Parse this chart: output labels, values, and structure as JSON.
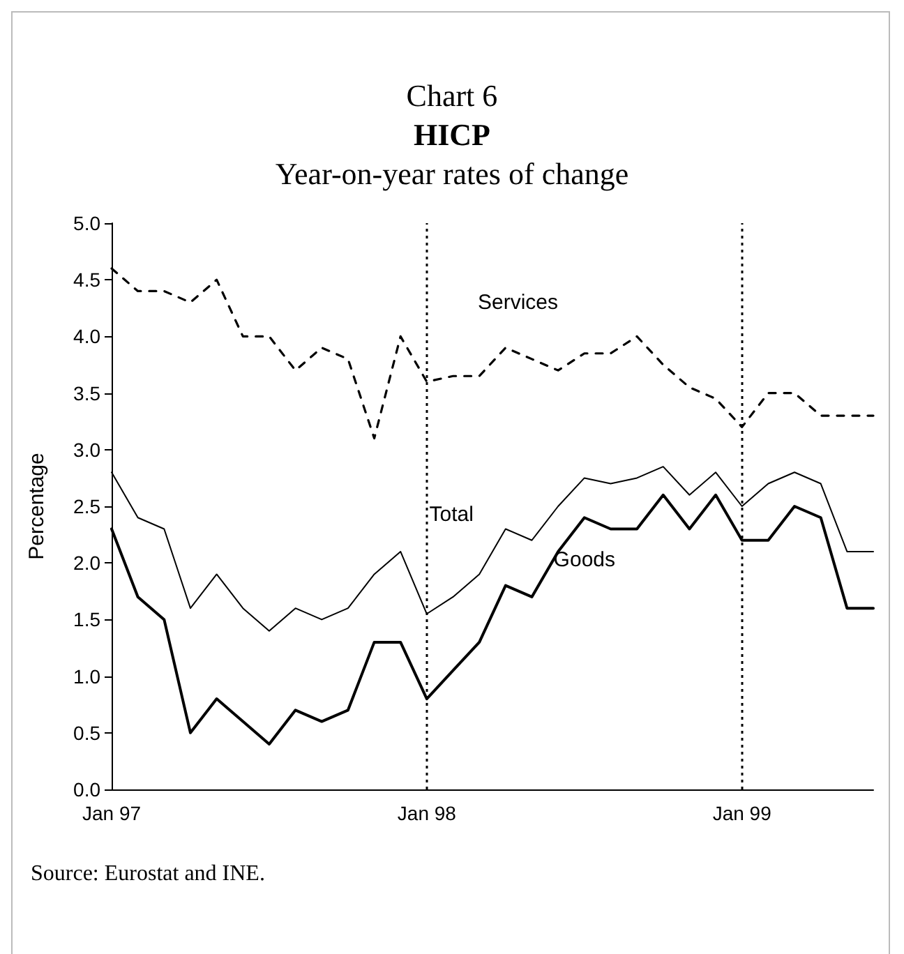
{
  "chart_data": {
    "type": "line",
    "title": "HICP",
    "subtitle": "Year-on-year rates of change",
    "ylabel": "Percentage",
    "annotations": [
      "Chart 6",
      "Source: Eurostat and INE."
    ],
    "categories": [
      "Jan 97",
      null,
      null,
      null,
      null,
      null,
      null,
      null,
      null,
      null,
      null,
      null,
      "Jan 98",
      null,
      null,
      null,
      null,
      null,
      null,
      null,
      null,
      null,
      null,
      null,
      "Jan 99",
      null,
      null,
      null,
      null,
      null
    ],
    "series": [
      {
        "name": "Services",
        "color": "#000000",
        "line_style": "dashed",
        "values": [
          4.6,
          4.4,
          4.4,
          4.3,
          4.5,
          4.0,
          4.0,
          3.7,
          3.9,
          3.8,
          3.1,
          4.0,
          3.6,
          3.65,
          3.65,
          3.9,
          3.8,
          3.7,
          3.85,
          3.85,
          4.0,
          3.75,
          3.55,
          3.45,
          3.2,
          3.5,
          3.5,
          3.3,
          3.3,
          3.3
        ]
      },
      {
        "name": "Total",
        "color": "#000000",
        "line_style": "solid",
        "values": [
          2.8,
          2.4,
          2.3,
          1.6,
          1.9,
          1.6,
          1.4,
          1.6,
          1.5,
          1.6,
          1.9,
          2.1,
          1.55,
          1.7,
          1.9,
          2.3,
          2.2,
          2.5,
          2.75,
          2.7,
          2.75,
          2.85,
          2.6,
          2.8,
          2.5,
          2.7,
          2.8,
          2.7,
          2.1,
          2.1
        ]
      },
      {
        "name": "Goods",
        "color": "#000000",
        "line_style": "solid",
        "values": [
          2.3,
          1.7,
          1.5,
          0.5,
          0.8,
          0.6,
          0.4,
          0.7,
          0.6,
          0.7,
          1.3,
          1.3,
          0.8,
          1.05,
          1.3,
          1.8,
          1.7,
          2.1,
          2.4,
          2.3,
          2.3,
          2.6,
          2.3,
          2.6,
          2.2,
          2.2,
          2.5,
          2.4,
          1.6,
          1.6
        ]
      }
    ],
    "ylim": [
      0,
      5
    ],
    "yticks": [
      {
        "value": 0,
        "label": "0.0"
      },
      {
        "value": 0.5,
        "label": "0.5"
      },
      {
        "value": 1,
        "label": "1.0"
      },
      {
        "value": 1.5,
        "label": "1.5"
      },
      {
        "value": 2,
        "label": "2.0"
      },
      {
        "value": 2.5,
        "label": "2.5"
      },
      {
        "value": 3,
        "label": "3.0"
      },
      {
        "value": 3.5,
        "label": "3.5"
      },
      {
        "value": 4,
        "label": "4.0"
      },
      {
        "value": 4.5,
        "label": "4.5"
      },
      {
        "value": 5,
        "label": "5.0"
      }
    ],
    "ref_lines": [
      {
        "axis": "x",
        "value": "Jan 98",
        "line_style": "dotted",
        "color": "#000000"
      },
      {
        "axis": "x",
        "value": "Jan 99",
        "line_style": "dotted",
        "color": "#000000"
      }
    ],
    "grid": false,
    "legend": false,
    "marker": "none"
  }
}
